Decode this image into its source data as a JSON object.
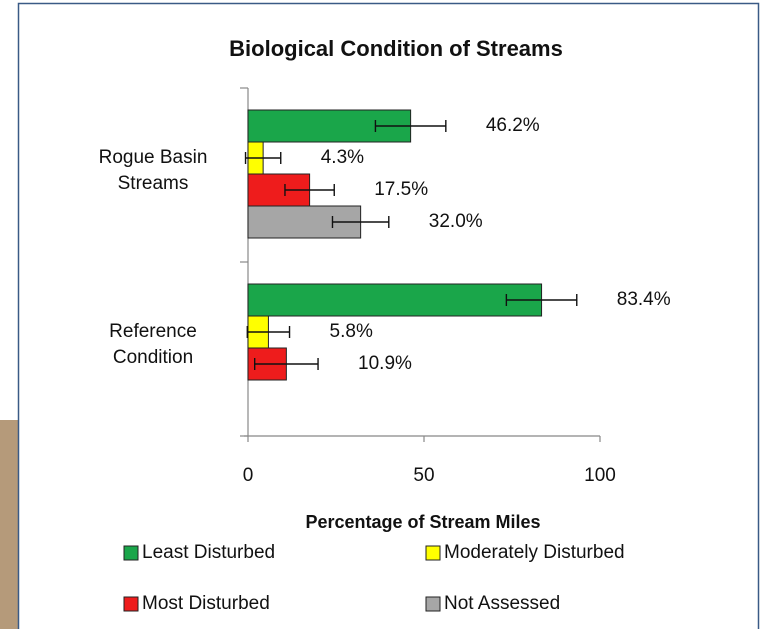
{
  "chart_data": {
    "type": "bar",
    "orientation": "horizontal",
    "title": "Biological Condition of Streams",
    "x_label": "Percentage of Stream Miles",
    "categories": [
      "Rogue Basin Streams",
      "Reference Condition"
    ],
    "series": [
      {
        "name": "Least Disturbed",
        "color": "#1aa64a",
        "values": [
          46.2,
          83.4
        ],
        "errors": [
          10,
          10
        ],
        "value_labels": [
          "46.2%",
          "83.4%"
        ]
      },
      {
        "name": "Moderately Disturbed",
        "color": "#ffff00",
        "values": [
          4.3,
          5.8
        ],
        "errors": [
          5,
          6
        ],
        "value_labels": [
          "4.3%",
          "5.8%"
        ]
      },
      {
        "name": "Most Disturbed",
        "color": "#ee1c1c",
        "values": [
          17.5,
          10.9
        ],
        "errors": [
          7,
          9
        ],
        "value_labels": [
          "17.5%",
          "10.9%"
        ]
      },
      {
        "name": "Not Assessed",
        "color": "#a6a6a6",
        "values": [
          32.0,
          null
        ],
        "errors": [
          8,
          null
        ],
        "value_labels": [
          "32.0%",
          null
        ]
      }
    ],
    "xlim": [
      0,
      100
    ],
    "xticks": [
      0,
      50,
      100
    ],
    "grid": false
  }
}
